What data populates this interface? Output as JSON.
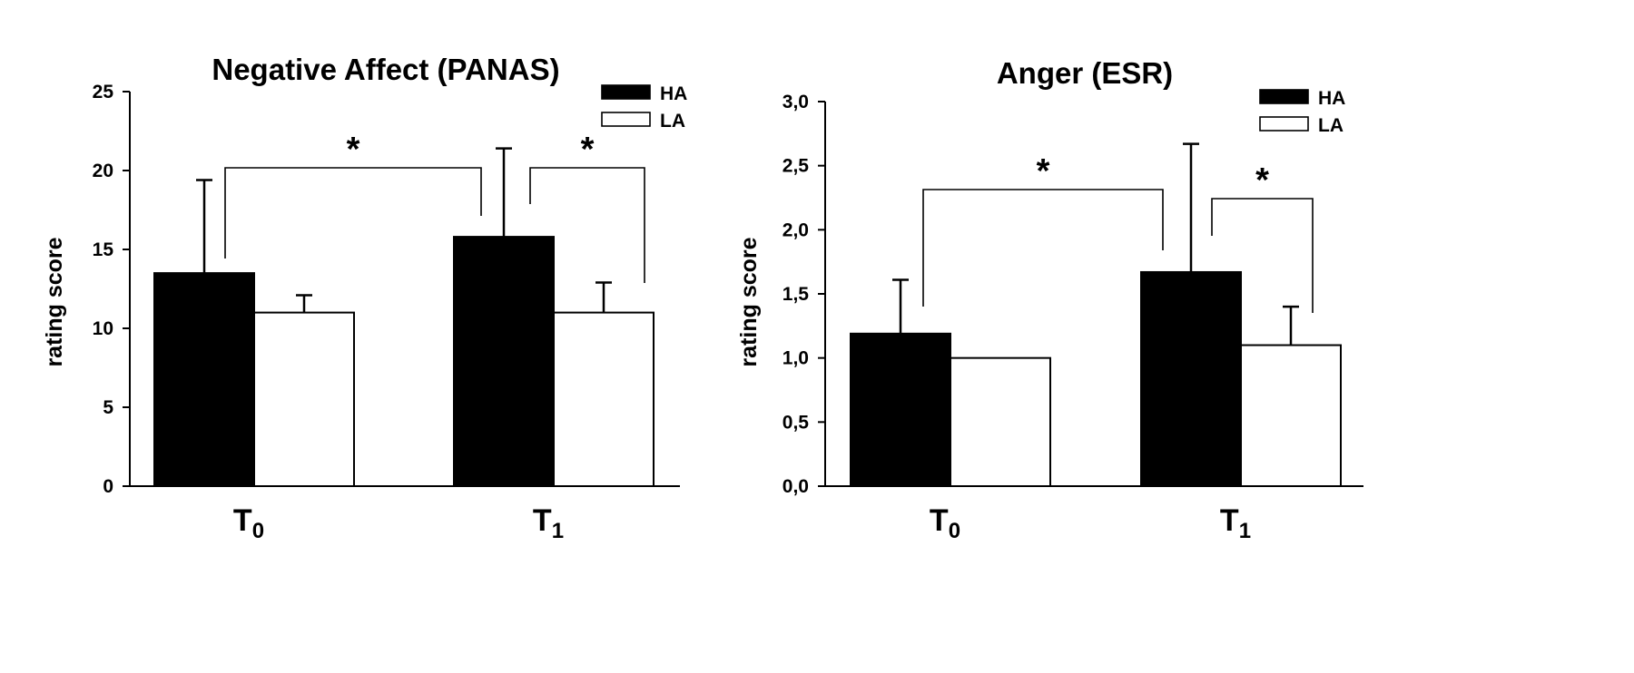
{
  "chart_data": [
    {
      "type": "bar",
      "title": "Negative Affect (PANAS)",
      "ylabel": "rating score",
      "xlabel": "",
      "ylim": [
        0,
        25
      ],
      "yticks": [
        "0",
        "5",
        "10",
        "15",
        "20",
        "25"
      ],
      "categories": [
        {
          "main": "T",
          "sub": "0"
        },
        {
          "main": "T",
          "sub": "1"
        }
      ],
      "series": [
        {
          "name": "HA",
          "color": "#000000",
          "values": [
            13.5,
            15.8
          ],
          "errors": [
            5.9,
            5.6
          ]
        },
        {
          "name": "LA",
          "color": "#ffffff",
          "values": [
            11.0,
            11.0
          ],
          "errors": [
            1.1,
            1.9
          ]
        }
      ],
      "legend": {
        "position": "top-right"
      },
      "grid": false,
      "annotations": [
        {
          "label": "*",
          "from": [
            0,
            0
          ],
          "to": [
            1,
            0
          ]
        },
        {
          "label": "*",
          "from": [
            1,
            0
          ],
          "to": [
            1,
            1
          ]
        }
      ]
    },
    {
      "type": "bar",
      "title": "Anger (ESR)",
      "ylabel": "rating score",
      "xlabel": "",
      "ylim": [
        0,
        3
      ],
      "yticks": [
        "0,0",
        "0,5",
        "1,0",
        "1,5",
        "2,0",
        "2,5",
        "3,0"
      ],
      "categories": [
        {
          "main": "T",
          "sub": "0"
        },
        {
          "main": "T",
          "sub": "1"
        }
      ],
      "series": [
        {
          "name": "HA",
          "color": "#000000",
          "values": [
            1.19,
            1.67
          ],
          "errors": [
            0.42,
            1.0
          ]
        },
        {
          "name": "LA",
          "color": "#ffffff",
          "values": [
            1.0,
            1.1
          ],
          "errors": [
            0.0,
            0.3
          ]
        }
      ],
      "legend": {
        "position": "top-right"
      },
      "grid": false,
      "annotations": [
        {
          "label": "*",
          "from": [
            0,
            0
          ],
          "to": [
            1,
            0
          ]
        },
        {
          "label": "*",
          "from": [
            1,
            0
          ],
          "to": [
            1,
            1
          ]
        }
      ]
    }
  ]
}
